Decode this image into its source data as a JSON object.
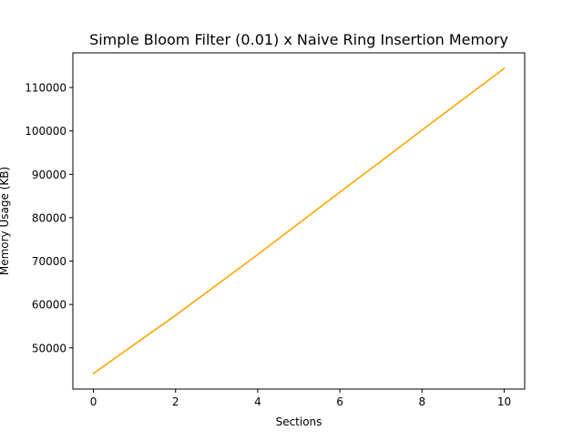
{
  "chart_data": {
    "type": "line",
    "title": "Simple Bloom Filter (0.01) x Naive Ring Insertion Memory",
    "xlabel": "Sections",
    "ylabel": "Memory Usage (KB)",
    "xlim": [
      -0.5,
      10.5
    ],
    "ylim": [
      40500,
      118000
    ],
    "xticks": [
      0,
      2,
      4,
      6,
      8,
      10
    ],
    "yticks": [
      50000,
      60000,
      70000,
      80000,
      90000,
      100000,
      110000
    ],
    "grid": false,
    "series": [
      {
        "color": "#ffa500",
        "x": [
          0,
          1,
          2,
          3,
          4,
          5,
          6,
          7,
          8,
          9,
          10
        ],
        "y": [
          44100,
          50800,
          57500,
          64500,
          71500,
          78700,
          85900,
          93000,
          100200,
          107300,
          114400
        ]
      }
    ]
  }
}
